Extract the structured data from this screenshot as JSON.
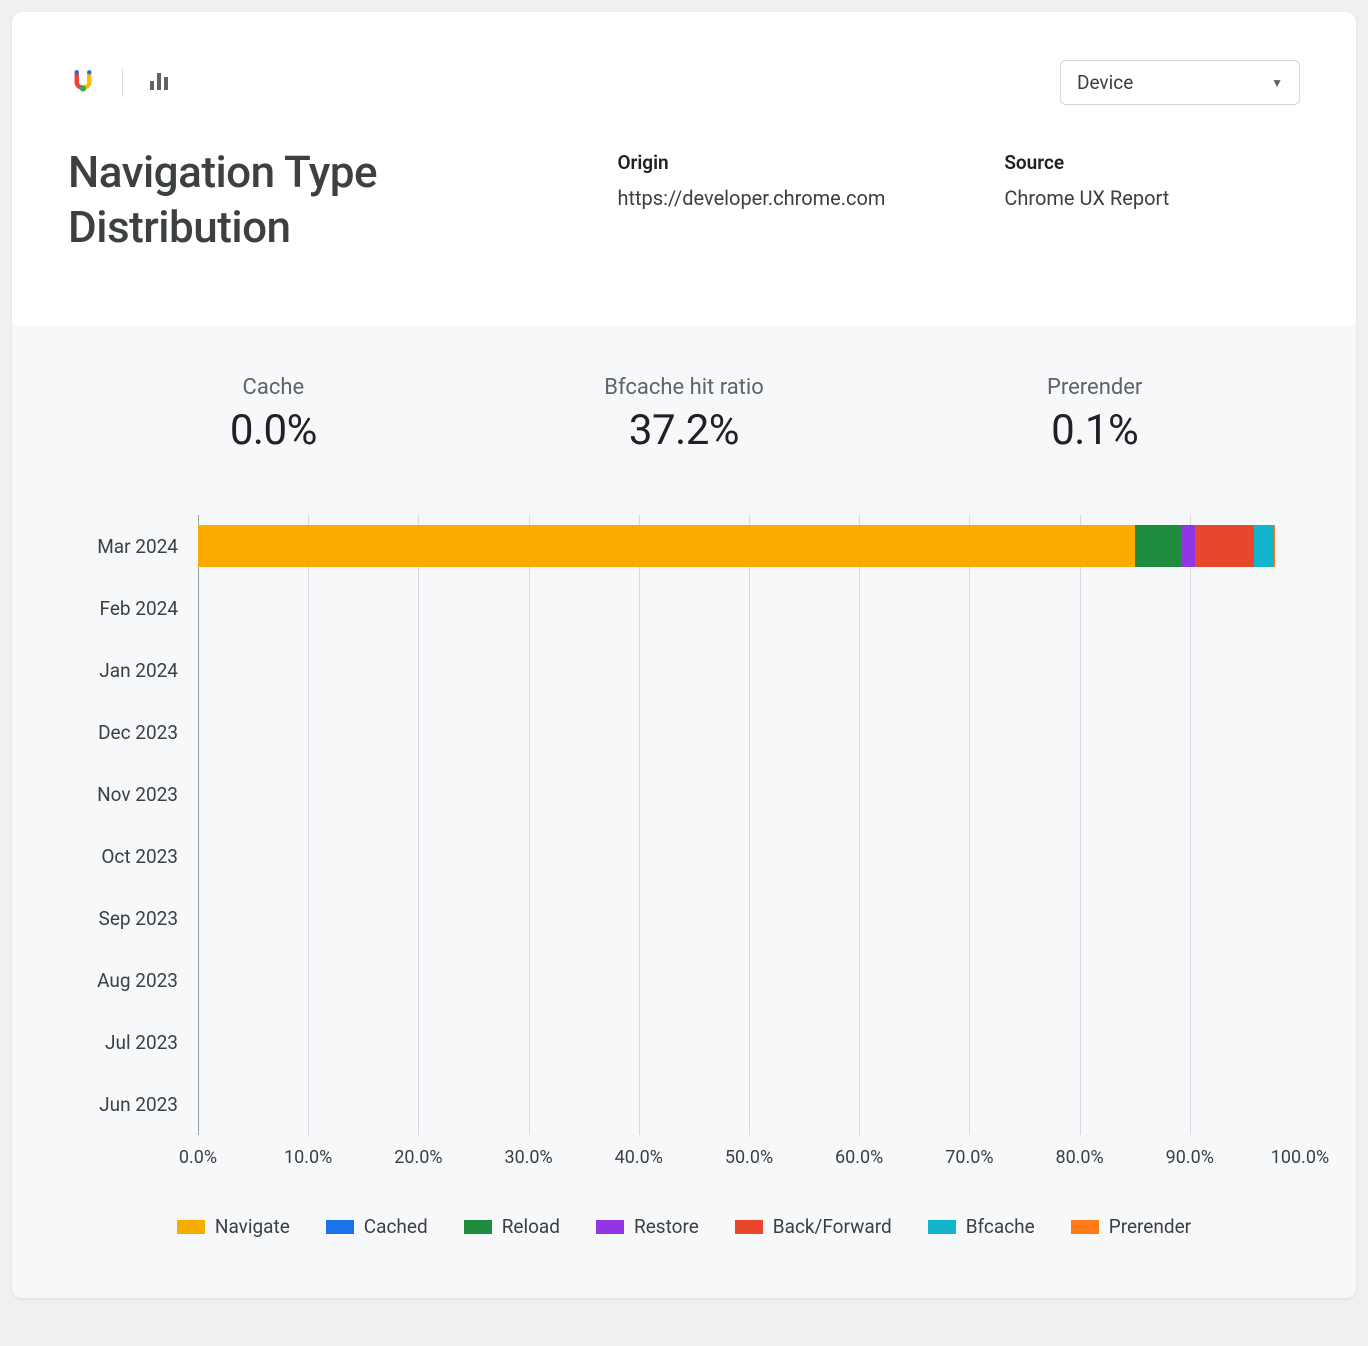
{
  "header": {
    "device_label": "Device"
  },
  "title": "Navigation Type Distribution",
  "meta": {
    "origin_label": "Origin",
    "origin_value": "https://developer.chrome.com",
    "source_label": "Source",
    "source_value": "Chrome UX Report"
  },
  "stats": {
    "cache": {
      "label": "Cache",
      "value": "0.0%"
    },
    "bfcache_hit": {
      "label": "Bfcache hit ratio",
      "value": "37.2%"
    },
    "prerender": {
      "label": "Prerender",
      "value": "0.1%"
    }
  },
  "chart": {
    "type": "stacked-bar-horizontal",
    "background_color": "#f7f8fa",
    "grid_color": "#d7d9dc",
    "axis_color": "#9aa0a6",
    "y_categories": [
      "Mar 2024",
      "Feb 2024",
      "Jan 2024",
      "Dec 2023",
      "Nov 2023",
      "Oct 2023",
      "Sep 2023",
      "Aug 2023",
      "Jul 2023",
      "Jun 2023"
    ],
    "x_ticks": [
      "0.0%",
      "10.0%",
      "20.0%",
      "30.0%",
      "40.0%",
      "50.0%",
      "60.0%",
      "70.0%",
      "80.0%",
      "90.0%",
      "100.0%"
    ],
    "xlim": [
      0,
      100
    ],
    "series": [
      {
        "name": "Navigate",
        "color": "#f9ab00"
      },
      {
        "name": "Cached",
        "color": "#1a73e8"
      },
      {
        "name": "Reload",
        "color": "#1e8e3e"
      },
      {
        "name": "Restore",
        "color": "#9334e6"
      },
      {
        "name": "Back/Forward",
        "color": "#e8472b"
      },
      {
        "name": "Bfcache",
        "color": "#12b5cb"
      },
      {
        "name": "Prerender",
        "color": "#ff7b17"
      }
    ],
    "rows": [
      {
        "label": "Mar 2024",
        "values": [
          85.0,
          0.0,
          4.2,
          1.3,
          5.3,
          1.8,
          0.1
        ]
      },
      {
        "label": "Feb 2024",
        "values": []
      },
      {
        "label": "Jan 2024",
        "values": []
      },
      {
        "label": "Dec 2023",
        "values": []
      },
      {
        "label": "Nov 2023",
        "values": []
      },
      {
        "label": "Oct 2023",
        "values": []
      },
      {
        "label": "Sep 2023",
        "values": []
      },
      {
        "label": "Aug 2023",
        "values": []
      },
      {
        "label": "Jul 2023",
        "values": []
      },
      {
        "label": "Jun 2023",
        "values": []
      }
    ],
    "label_fontsize": 19,
    "tick_fontsize": 18
  }
}
